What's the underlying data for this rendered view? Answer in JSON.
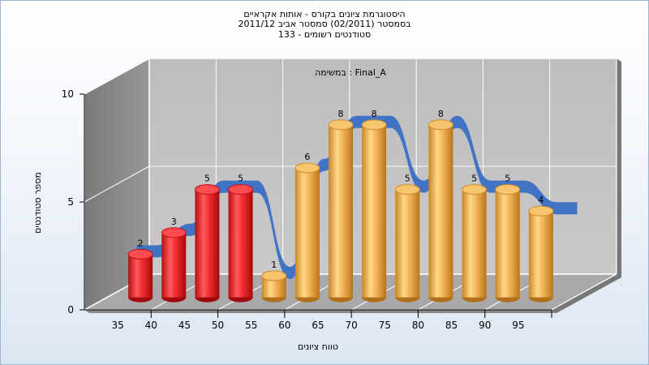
{
  "chart_data": {
    "type": "bar",
    "title_lines": [
      "היסטוגרמת ציונים בקורס - אותות אקראיים",
      "בסמסטר  (02/2011)  סמסטר אביב 2011/12",
      "סטודנטים רשומים - 133"
    ],
    "annotation": "במשימה : Final_A",
    "xlabel": "טווח ציונים",
    "ylabel": "מספר סטודנטים",
    "categories": [
      "35",
      "40",
      "45",
      "50",
      "55",
      "60",
      "65",
      "70",
      "75",
      "80",
      "85",
      "90",
      "95"
    ],
    "values": [
      2,
      3,
      5,
      5,
      1,
      6,
      8,
      8,
      5,
      8,
      5,
      5,
      4
    ],
    "value_labels": [
      "2",
      "3",
      "5",
      "5",
      "1",
      "6",
      "8",
      "8",
      "5",
      "8",
      "5",
      "5",
      "4"
    ],
    "bar_colors": [
      "#e8262a",
      "#e8262a",
      "#e8262a",
      "#e8262a",
      "#f0a944",
      "#f0a944",
      "#f0a944",
      "#f0a944",
      "#f0a944",
      "#f0a944",
      "#f0a944",
      "#f0a944",
      "#f0a944"
    ],
    "ylim": [
      0,
      10
    ],
    "yticks": [
      "0",
      "5",
      "10"
    ],
    "trend_color": "#3a6fc4",
    "grid": true
  }
}
